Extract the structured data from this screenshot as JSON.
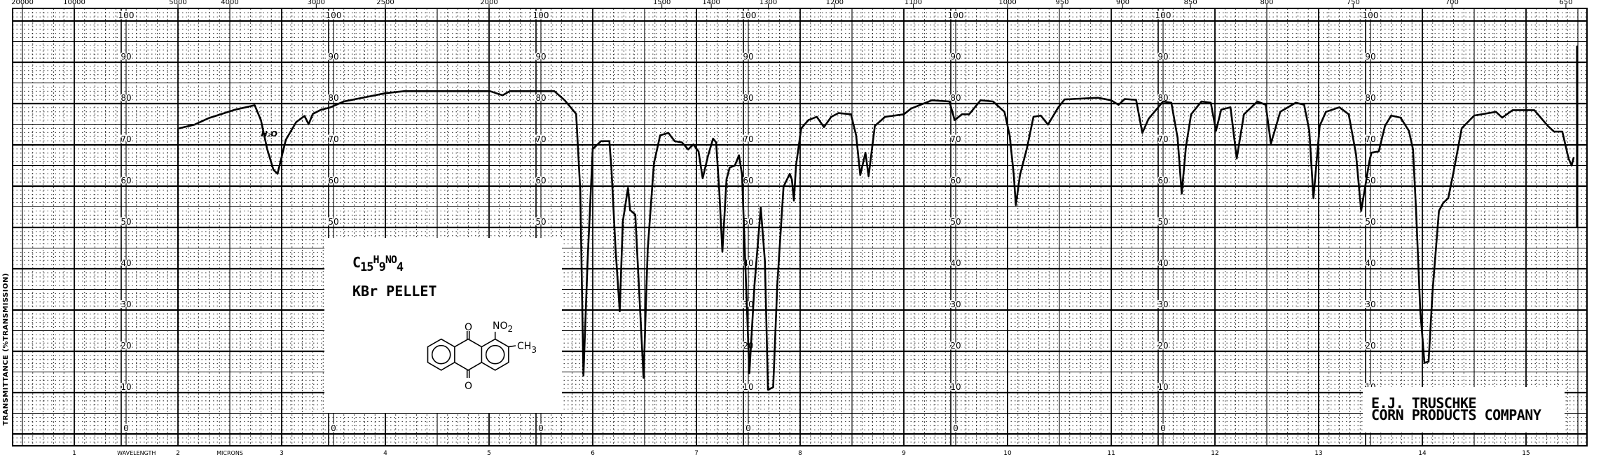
{
  "chart_data": {
    "type": "line",
    "xlabel": "WAVELENGTH",
    "xunit": "MICRONS",
    "ylabel": "TRANSMITTANCE (%TRANSMISSION)",
    "xlim": [
      0.5,
      15.6
    ],
    "ylim": [
      0,
      100
    ],
    "grid": true,
    "x_ticks": [
      "1",
      "2",
      "3",
      "4",
      "5",
      "6",
      "7",
      "8",
      "9",
      "10",
      "11",
      "12",
      "13",
      "14",
      "15"
    ],
    "top_axis_ticks": [
      "20000",
      "10000",
      "5000",
      "4000",
      "3000",
      "2500",
      "2000",
      "1500",
      "1400",
      "1300",
      "1200",
      "1100",
      "1000",
      "950",
      "900",
      "850",
      "800",
      "750",
      "700",
      "650"
    ],
    "y_ticks": [
      "100",
      "90",
      "80",
      "70",
      "60",
      "50",
      "40",
      "30",
      "20",
      "10",
      "0"
    ],
    "y_label_columns_microns": [
      1.5,
      3.5,
      5.5,
      7.5,
      9.5,
      11.5,
      13.5
    ],
    "trace_color": "#000000",
    "start_marker": {
      "x": 2.0,
      "y": [
        22,
        74
      ]
    },
    "end_marker": {
      "x": 15.49,
      "y": [
        50,
        94
      ]
    },
    "series": [
      {
        "points": [
          [
            2.01,
            74
          ],
          [
            2.16,
            74.9
          ],
          [
            2.3,
            76.5
          ],
          [
            2.55,
            78.5
          ],
          [
            2.74,
            79.6
          ],
          [
            2.8,
            76
          ],
          [
            2.86,
            69
          ],
          [
            2.92,
            64
          ],
          [
            2.96,
            63
          ],
          [
            3.04,
            71.2
          ],
          [
            3.14,
            75.5
          ],
          [
            3.22,
            77
          ],
          [
            3.26,
            75
          ],
          [
            3.3,
            77.5
          ],
          [
            3.38,
            78.5
          ],
          [
            3.46,
            79
          ],
          [
            3.6,
            80.5
          ],
          [
            3.8,
            81.5
          ],
          [
            4.0,
            82.5
          ],
          [
            4.18,
            83
          ],
          [
            4.5,
            83
          ],
          [
            5.01,
            83
          ],
          [
            5.13,
            82
          ],
          [
            5.2,
            83
          ],
          [
            5.63,
            83
          ],
          [
            5.73,
            80.8
          ],
          [
            5.84,
            77.5
          ],
          [
            5.88,
            58.8
          ],
          [
            5.91,
            14.1
          ],
          [
            5.95,
            41.8
          ],
          [
            6.0,
            69
          ],
          [
            6.08,
            70.9
          ],
          [
            6.16,
            70.9
          ],
          [
            6.18,
            64.4
          ],
          [
            6.22,
            44.6
          ],
          [
            6.26,
            29.7
          ],
          [
            6.29,
            51.4
          ],
          [
            6.34,
            59.6
          ],
          [
            6.36,
            54.2
          ],
          [
            6.41,
            53.1
          ],
          [
            6.49,
            13.6
          ],
          [
            6.53,
            44.6
          ],
          [
            6.59,
            65.5
          ],
          [
            6.65,
            72.3
          ],
          [
            6.73,
            72.9
          ],
          [
            6.79,
            70.9
          ],
          [
            6.86,
            70.6
          ],
          [
            6.92,
            68.9
          ],
          [
            6.97,
            70.1
          ],
          [
            7.02,
            68.4
          ],
          [
            7.06,
            61.9
          ],
          [
            7.11,
            67.2
          ],
          [
            7.16,
            71.5
          ],
          [
            7.19,
            70.6
          ],
          [
            7.22,
            58.8
          ],
          [
            7.25,
            44.1
          ],
          [
            7.29,
            61.6
          ],
          [
            7.32,
            64.5
          ],
          [
            7.37,
            65
          ],
          [
            7.41,
            67.5
          ],
          [
            7.44,
            62.7
          ],
          [
            7.47,
            41.8
          ],
          [
            7.51,
            14.7
          ],
          [
            7.56,
            36.2
          ],
          [
            7.62,
            54.8
          ],
          [
            7.66,
            41.8
          ],
          [
            7.69,
            10.7
          ],
          [
            7.74,
            11.3
          ],
          [
            7.78,
            36.2
          ],
          [
            7.84,
            59.9
          ],
          [
            7.9,
            63
          ],
          [
            7.92,
            61.6
          ],
          [
            7.94,
            56.5
          ],
          [
            7.96,
            65
          ],
          [
            8.01,
            74
          ],
          [
            8.08,
            76
          ],
          [
            8.16,
            76.8
          ],
          [
            8.23,
            74.3
          ],
          [
            8.3,
            76.8
          ],
          [
            8.37,
            77.7
          ],
          [
            8.49,
            77.4
          ],
          [
            8.54,
            72.3
          ],
          [
            8.58,
            62.7
          ],
          [
            8.63,
            68.1
          ],
          [
            8.66,
            62.4
          ],
          [
            8.72,
            74.6
          ],
          [
            8.82,
            76.8
          ],
          [
            9.0,
            77.4
          ],
          [
            9.07,
            78.8
          ],
          [
            9.27,
            80.8
          ],
          [
            9.44,
            80.5
          ],
          [
            9.49,
            76
          ],
          [
            9.56,
            77.4
          ],
          [
            9.63,
            77.4
          ],
          [
            9.74,
            80.8
          ],
          [
            9.86,
            80.5
          ],
          [
            9.97,
            78
          ],
          [
            10.02,
            72.3
          ],
          [
            10.06,
            62.7
          ],
          [
            10.08,
            55.4
          ],
          [
            10.12,
            62.7
          ],
          [
            10.19,
            69.5
          ],
          [
            10.25,
            76.8
          ],
          [
            10.32,
            77.1
          ],
          [
            10.39,
            74.9
          ],
          [
            10.49,
            79.1
          ],
          [
            10.55,
            81
          ],
          [
            10.87,
            81.4
          ],
          [
            11.0,
            80.8
          ],
          [
            11.07,
            79.7
          ],
          [
            11.13,
            81.1
          ],
          [
            11.24,
            80.9
          ],
          [
            11.3,
            72.9
          ],
          [
            11.36,
            76.3
          ],
          [
            11.5,
            80.5
          ],
          [
            11.58,
            80.2
          ],
          [
            11.64,
            71.7
          ],
          [
            11.68,
            58.2
          ],
          [
            11.72,
            69.5
          ],
          [
            11.77,
            77.4
          ],
          [
            11.87,
            80.5
          ],
          [
            11.96,
            80.2
          ],
          [
            12.01,
            73.4
          ],
          [
            12.06,
            78.5
          ],
          [
            12.15,
            79.1
          ],
          [
            12.21,
            66.7
          ],
          [
            12.28,
            77.4
          ],
          [
            12.41,
            80.5
          ],
          [
            12.49,
            79.7
          ],
          [
            12.54,
            70.3
          ],
          [
            12.63,
            78
          ],
          [
            12.78,
            80.2
          ],
          [
            12.86,
            79.7
          ],
          [
            12.91,
            73.4
          ],
          [
            12.95,
            57.1
          ],
          [
            13.01,
            74.6
          ],
          [
            13.07,
            78
          ],
          [
            13.2,
            79.1
          ],
          [
            13.29,
            77.4
          ],
          [
            13.36,
            67.8
          ],
          [
            13.41,
            54
          ],
          [
            13.49,
            66.1
          ],
          [
            13.51,
            68.1
          ],
          [
            13.58,
            68.4
          ],
          [
            13.64,
            74.6
          ],
          [
            13.7,
            77.1
          ],
          [
            13.79,
            76.6
          ],
          [
            13.87,
            73.4
          ],
          [
            13.91,
            68.9
          ],
          [
            13.94,
            54
          ],
          [
            13.98,
            30
          ],
          [
            14.02,
            17.2
          ],
          [
            14.06,
            17.5
          ],
          [
            14.1,
            35
          ],
          [
            14.16,
            54
          ],
          [
            14.2,
            55.9
          ],
          [
            14.25,
            57.1
          ],
          [
            14.3,
            63.3
          ],
          [
            14.38,
            74
          ],
          [
            14.5,
            77.1
          ],
          [
            14.71,
            78
          ],
          [
            14.77,
            76.6
          ],
          [
            14.87,
            78.4
          ],
          [
            15.08,
            78.4
          ],
          [
            15.21,
            74.6
          ],
          [
            15.27,
            73.2
          ],
          [
            15.35,
            73.2
          ],
          [
            15.41,
            66.7
          ],
          [
            15.44,
            65
          ],
          [
            15.46,
            67
          ]
        ]
      }
    ],
    "annotations": [
      {
        "text": "H₂O",
        "x": 2.88,
        "y": 72
      }
    ]
  },
  "sample": {
    "formula": {
      "c": "C",
      "c_n": "15",
      "h": "H",
      "h_n": "9",
      "no": "NO",
      "o_n": "4"
    },
    "preparation": "KBr PELLET",
    "structure": {
      "oxygen_top": "O",
      "oxygen_bottom": "O",
      "nitro": "NO",
      "nitro_n": "2",
      "methyl": "CH",
      "methyl_n": "3"
    }
  },
  "credit": {
    "line1": "E.J. TRUSCHKE",
    "line2": "CORN PRODUCTS COMPANY"
  }
}
